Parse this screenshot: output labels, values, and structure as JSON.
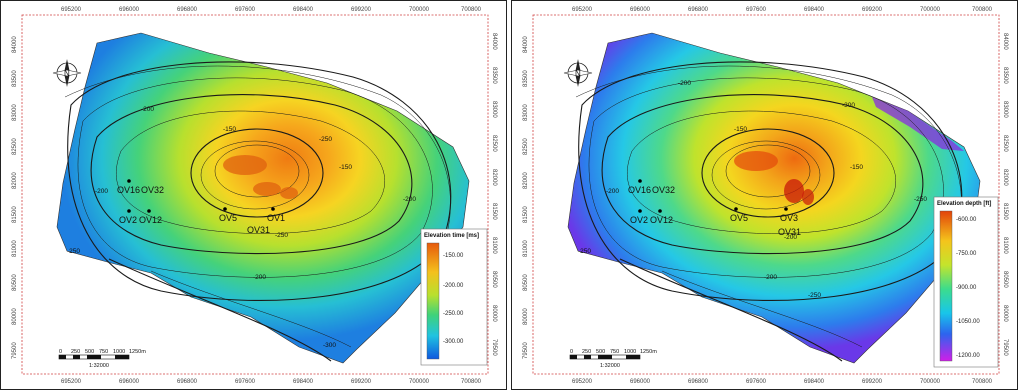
{
  "maps": [
    {
      "id": "time",
      "x_ticks": [
        "695200",
        "696000",
        "696800",
        "697600",
        "698400",
        "699200",
        "700000",
        "700800"
      ],
      "y_ticks": [
        "84000",
        "83500",
        "83000",
        "82500",
        "82000",
        "81500",
        "81000",
        "80500",
        "80000",
        "79500"
      ],
      "wells": [
        "OV16",
        "OV32",
        "OV2",
        "OV12",
        "OV5",
        "OV1",
        "OV31"
      ],
      "contour_labels": [
        "-150",
        "-200",
        "-200",
        "-200",
        "-250",
        "-250",
        "-150",
        "-200",
        "-250",
        "-300"
      ],
      "legend": {
        "title": "Elevation time [ms]",
        "ticks": [
          "-150.00",
          "-200.00",
          "-250.00",
          "-300.00"
        ]
      },
      "scale": {
        "ticks": [
          "0",
          "250",
          "500",
          "750",
          "1000",
          "1250m"
        ],
        "ratio": "1:32000"
      },
      "colors": [
        "#0b5fe0",
        "#19b9e0",
        "#33d27a",
        "#b4e030",
        "#f0d020",
        "#f08a10",
        "#e04a0a"
      ]
    },
    {
      "id": "depth",
      "x_ticks": [
        "695200",
        "696000",
        "696800",
        "697600",
        "698400",
        "699200",
        "700000",
        "700800"
      ],
      "y_ticks": [
        "84000",
        "83500",
        "83000",
        "82500",
        "82000",
        "81500",
        "81000",
        "80500",
        "80000",
        "79500"
      ],
      "wells": [
        "OV16",
        "OV32",
        "OV2",
        "OV12",
        "OV5",
        "OV3",
        "OV31"
      ],
      "contour_labels": [
        "-150",
        "-200",
        "-200",
        "-250",
        "-250",
        "-300",
        "-150",
        "-200",
        "-250",
        "-200"
      ],
      "legend": {
        "title": "Elevation depth [ft]",
        "ticks": [
          "-600.00",
          "-750.00",
          "-900.00",
          "-1050.00",
          "-1200.00"
        ]
      },
      "scale": {
        "ticks": [
          "0",
          "250",
          "500",
          "750",
          "1000",
          "1250m"
        ],
        "ratio": "1:32000"
      },
      "colors": [
        "#c81ee6",
        "#2f6cf0",
        "#19c3e8",
        "#3ce08a",
        "#c8e628",
        "#f0c818",
        "#f07d10",
        "#e03c0a"
      ]
    }
  ]
}
